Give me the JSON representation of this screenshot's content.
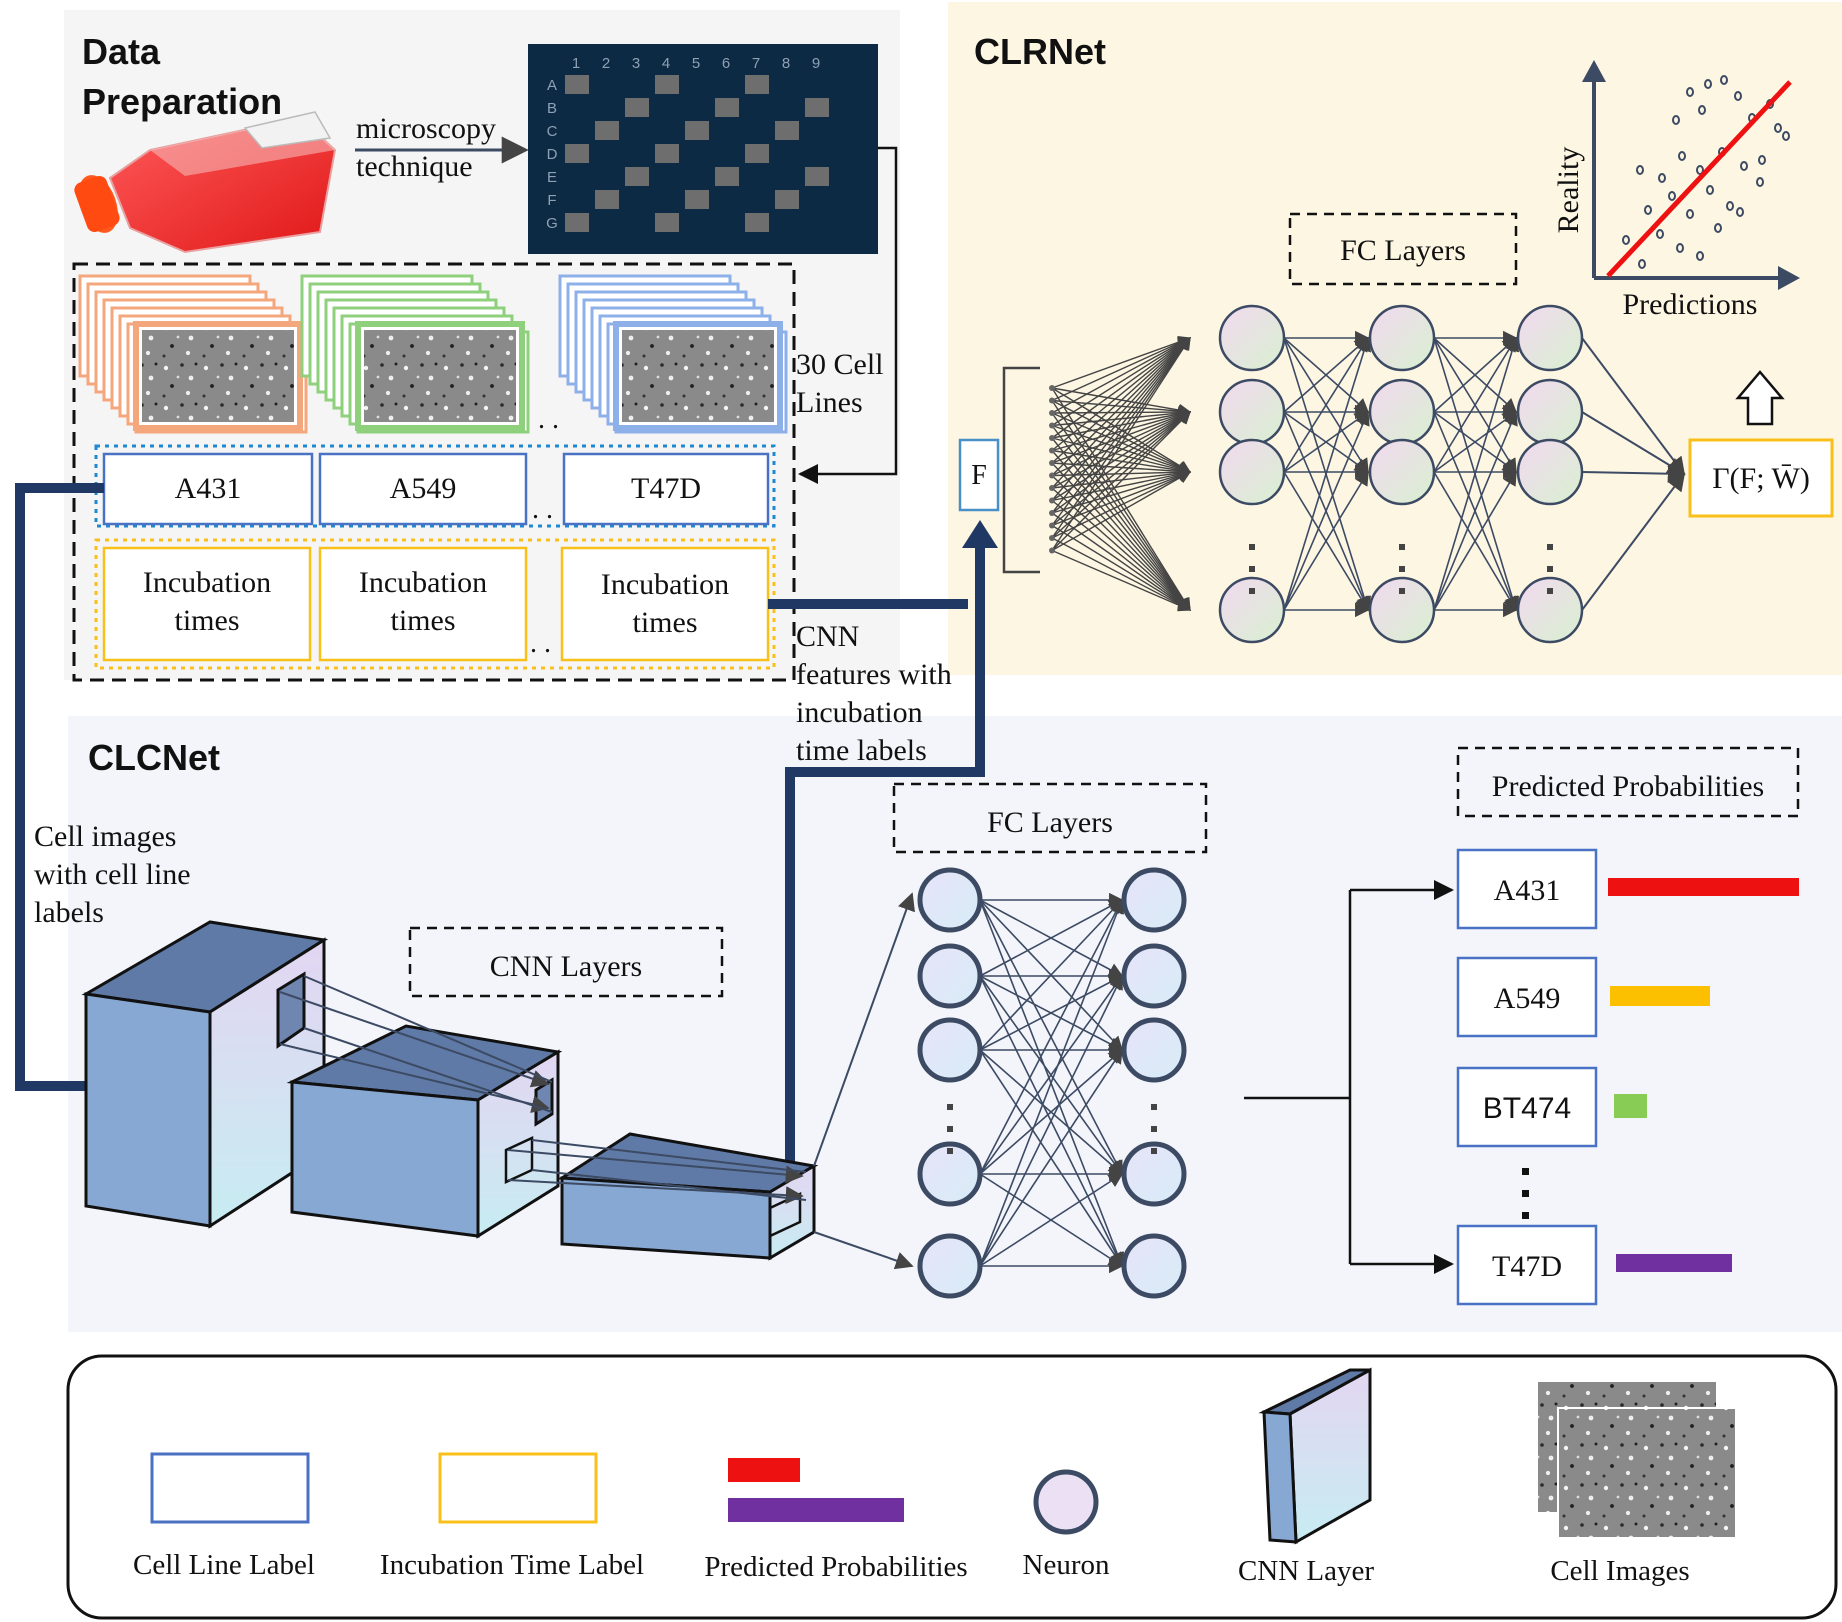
{
  "data_preparation": {
    "title_line1": "Data",
    "title_line2": "Preparation",
    "arrow_label_line1": "microscopy",
    "arrow_label_line2": "technique",
    "plate_columns": [
      "1",
      "2",
      "3",
      "4",
      "5",
      "6",
      "7",
      "8",
      "9"
    ],
    "plate_rows": [
      "A",
      "B",
      "C",
      "D",
      "E",
      "F",
      "G"
    ],
    "cell_lines_note_line1": "30 Cell",
    "cell_lines_note_line2": "Lines",
    "cell_line_labels": [
      "A431",
      "A549",
      "T47D"
    ],
    "incubation_label_line1": "Incubation",
    "incubation_label_line2": "times",
    "ellipsis": ". ."
  },
  "clrnet": {
    "title": "CLRNet",
    "fc_layers_label": "FC Layers",
    "feature_input": "F",
    "output_label": "Γ(F; W̄)",
    "scatter_ylabel": "Reality",
    "scatter_xlabel": "Predictions"
  },
  "clcnet": {
    "title": "CLCNet",
    "input_note_line1": "Cell images",
    "input_note_line2": "with cell line",
    "input_note_line3": "labels",
    "features_note_line1": "CNN",
    "features_note_line2": "features with",
    "features_note_line3": "incubation",
    "features_note_line4": "time labels",
    "cnn_layers_label": "CNN Layers",
    "fc_layers_label": "FC Layers",
    "predicted_label": "Predicted Probabilities",
    "predictions": [
      {
        "label": "A431",
        "probability": 0.92,
        "color": "#ee1111"
      },
      {
        "label": "A549",
        "probability": 0.48,
        "color": "#fcc000"
      },
      {
        "label": "BT474",
        "probability": 0.16,
        "color": "#88cc55"
      },
      {
        "label": "T47D",
        "probability": 0.56,
        "color": "#7030a0"
      }
    ]
  },
  "legend": {
    "cell_line_label": "Cell Line Label",
    "incubation_time_label": "Incubation Time Label",
    "predicted_probabilities": "Predicted Probabilities",
    "neuron": "Neuron",
    "cnn_layer": "CNN Layer",
    "cell_images": "Cell Images"
  },
  "colors": {
    "cell_line_blue": "#4a72c4",
    "incubation_yellow": "#f9c01a",
    "navy_arrow": "#1f3864",
    "clrnet_bg": "#fdf6e3",
    "clcnet_bg": "#f3f5fb",
    "plate_bg": "#0d2a45",
    "neuron_fill": "#ece0f5"
  }
}
